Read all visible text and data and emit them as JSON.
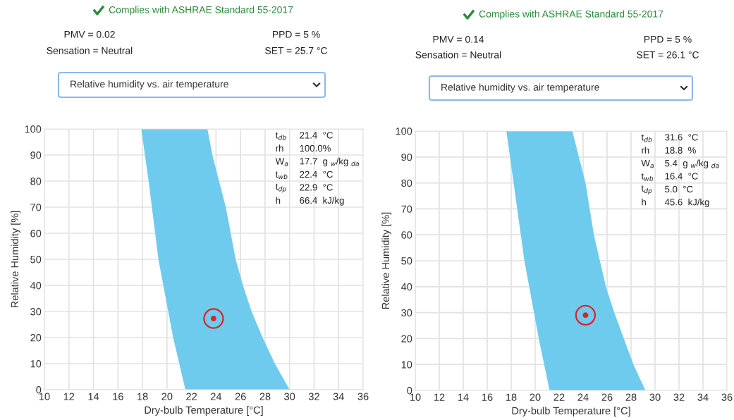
{
  "chart_data": [
    {
      "type": "area",
      "title": "Complies with ASHRAE Standard 55-2017",
      "xlabel": "Dry-bulb Temperature [°C]",
      "ylabel": "Relative Humidity [%]",
      "annotations": [
        "PMV = 0.02",
        "Sensation = Neutral",
        "PPD = 5 %",
        "SET = 25.7 °C",
        "Relative humidity vs. air temperature",
        "t$_{db}$",
        "21.4  °C",
        "rh",
        "100.0%",
        "W$_{a}$",
        "17.7  g $_{w}$/kg $_{da}$",
        "t$_{wb}$",
        "22.4  °C",
        "t$_{dp}$",
        "22.9  °C",
        "h",
        "66.4  kJ/kg"
      ],
      "xlim": [
        10,
        36
      ],
      "ylim": [
        0,
        100
      ],
      "xticks": [
        10,
        12,
        14,
        16,
        18,
        20,
        22,
        24,
        26,
        28,
        30,
        32,
        34,
        36
      ],
      "yticks": [
        0,
        10,
        20,
        30,
        40,
        50,
        60,
        70,
        80,
        90,
        100
      ],
      "grid": true,
      "series": [
        {
          "color": "#6ecbee",
          "x": [
            21.5,
            20.5,
            19.3,
            18.5,
            17.9,
            23.3,
            23.7,
            24.8,
            25.6,
            26.2,
            26.9,
            27.8,
            28.8,
            30.0
          ],
          "values": [
            0,
            20,
            50,
            80,
            100,
            100,
            90,
            70,
            50,
            40,
            30,
            20,
            10,
            0
          ]
        },
        {
          "type": "scatter",
          "color": "#e0202a",
          "marker": "circle",
          "x": [
            23.8
          ],
          "values": [
            27.3
          ]
        }
      ]
    },
    {
      "type": "area",
      "title": "Complies with ASHRAE Standard 55-2017",
      "xlabel": "Dry-bulb Temperature [°C]",
      "ylabel": "Relative Humidity [%]",
      "annotations": [
        "PMV = 0.14",
        "Sensation = Neutral",
        "PPD = 5 %",
        "SET = 26.1 °C",
        "Relative humidity vs. air temperature",
        "t$_{db}$",
        "31.6  °C",
        "rh",
        "18.8  %",
        "W$_{a}$",
        "5.4  g $_{w}$/kg $_{da}$",
        "t$_{wb}$",
        "16.4  °C",
        "t$_{dp}$",
        "5.0  °C",
        "h",
        "45.6  kJ/kg"
      ],
      "xlim": [
        10,
        36
      ],
      "ylim": [
        0,
        100
      ],
      "xticks": [
        10,
        12,
        14,
        16,
        18,
        20,
        22,
        24,
        26,
        28,
        30,
        32,
        34,
        36
      ],
      "yticks": [
        0,
        10,
        20,
        30,
        40,
        50,
        60,
        70,
        80,
        90,
        100
      ],
      "grid": true,
      "series": [
        {
          "color": "#6ecbee",
          "x": [
            21.2,
            20.3,
            19.1,
            17.6,
            23.1,
            24.2,
            24.9,
            25.9,
            26.6,
            27.4,
            28.2,
            29.2
          ],
          "values": [
            0,
            20,
            50,
            100,
            100,
            80,
            60,
            40,
            30,
            20,
            10,
            0
          ]
        },
        {
          "type": "scatter",
          "color": "#e0202a",
          "marker": "circle",
          "x": [
            24.2
          ],
          "values": [
            29.0
          ]
        }
      ]
    }
  ]
}
